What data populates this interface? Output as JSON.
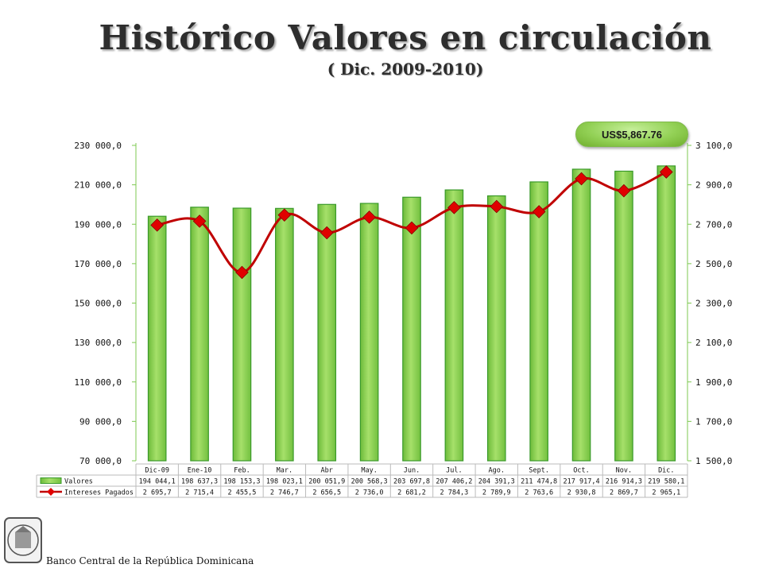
{
  "header": {
    "title": "Histórico Valores en circulación",
    "subtitle": "( Dic. 2009-2010)"
  },
  "callout": {
    "text": "US$5,867.76"
  },
  "footer": {
    "text": "Banco Central de la República Dominicana"
  },
  "colors": {
    "bar": "#8fd14f",
    "bar_edge": "#3a9a2a",
    "line": "#c00000",
    "marker": "#e00000"
  },
  "chart_data": {
    "type": "bar",
    "categories": [
      "Dic-09",
      "Ene-10",
      "Feb.",
      "Mar.",
      "Abr",
      "May.",
      "Jun.",
      "Jul.",
      "Ago.",
      "Sept.",
      "Oct.",
      "Nov.",
      "Dic."
    ],
    "series": [
      {
        "name": "Valores",
        "type": "bar",
        "axis": "left",
        "values": [
          194044.1,
          198637.3,
          198153.3,
          198023.1,
          200051.9,
          200568.3,
          203697.8,
          207406.2,
          204391.3,
          211474.8,
          217917.4,
          216914.3,
          219580.1
        ],
        "labels": [
          "194 044,1",
          "198 637,3",
          "198 153,3",
          "198 023,1",
          "200 051,9",
          "200 568,3",
          "203 697,8",
          "207 406,2",
          "204 391,3",
          "211 474,8",
          "217 917,4",
          "216 914,3",
          "219 580,1"
        ]
      },
      {
        "name": "Intereses Pagados",
        "type": "line",
        "axis": "right",
        "values": [
          2695.7,
          2715.4,
          2455.5,
          2746.7,
          2656.5,
          2736.0,
          2681.2,
          2784.3,
          2789.9,
          2763.6,
          2930.8,
          2869.7,
          2965.1
        ],
        "labels": [
          "2 695,7",
          "2 715,4",
          "2 455,5",
          "2 746,7",
          "2 656,5",
          "2 736,0",
          "2 681,2",
          "2 784,3",
          "2 789,9",
          "2 763,6",
          "2 930,8",
          "2 869,7",
          "2 965,1"
        ]
      }
    ],
    "y_left": {
      "ylim": [
        70000,
        230000
      ],
      "ticks": [
        70000,
        90000,
        110000,
        130000,
        150000,
        170000,
        190000,
        210000,
        230000
      ],
      "tick_labels": [
        "70 000,0",
        "90 000,0",
        "110 000,0",
        "130 000,0",
        "150 000,0",
        "170 000,0",
        "190 000,0",
        "210 000,0",
        "230 000,0"
      ]
    },
    "y_right": {
      "ylim": [
        1500,
        3100
      ],
      "ticks": [
        1500,
        1700,
        1900,
        2100,
        2300,
        2500,
        2700,
        2900,
        3100
      ],
      "tick_labels": [
        "1 500,0",
        "1 700,0",
        "1 900,0",
        "2 100,0",
        "2 300,0",
        "2 500,0",
        "2 700,0",
        "2 900,0",
        "3 100,0"
      ]
    },
    "grid": false,
    "legend": "data-table"
  }
}
